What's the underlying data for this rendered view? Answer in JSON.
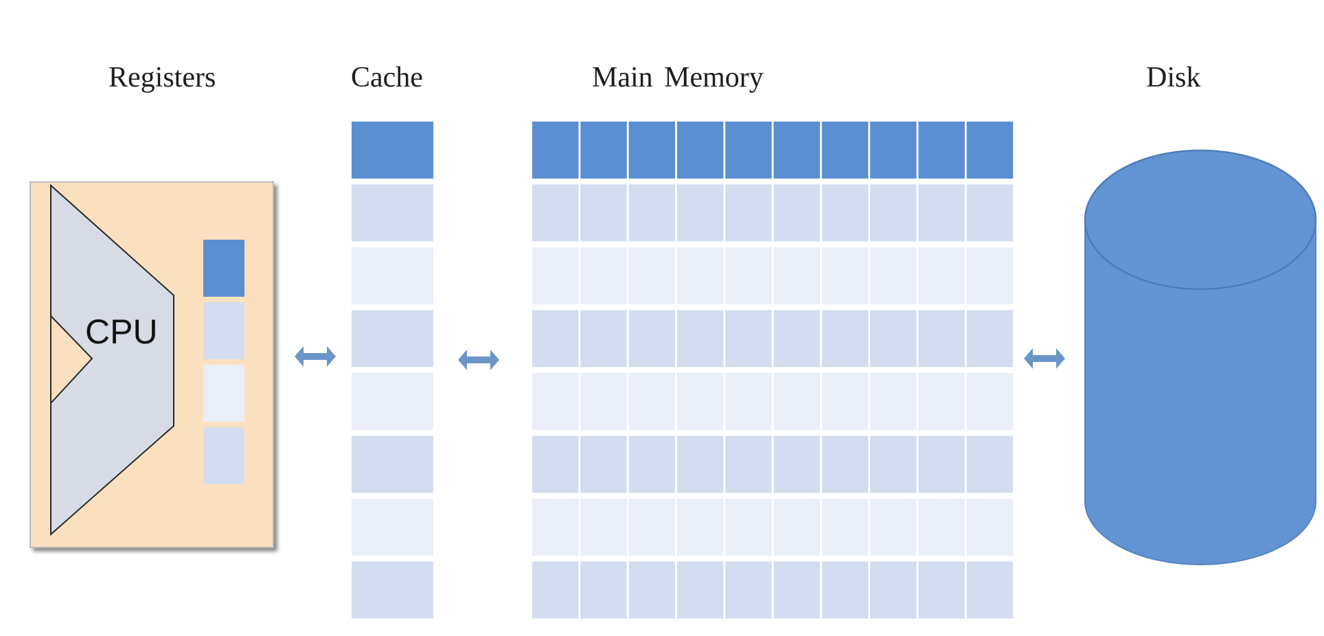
{
  "labels": {
    "registers": "Registers",
    "cache": "Cache",
    "main_memory": "Main  Memory",
    "disk": "Disk",
    "cpu": "CPU"
  },
  "structure": {
    "register_cells": 4,
    "cache_rows": 8,
    "memory_rows": 8,
    "memory_cols": 10,
    "highlighted_row": 0
  },
  "colors": {
    "accent_blue": "#5b8fd1",
    "disk_blue": "#6294d3",
    "disk_outline": "#4f7cb6",
    "register_panel": "#fbe0c0",
    "cpu_shape": "#d6dbe5",
    "row_dark": "#d3ddef",
    "row_light": "#e9eef8",
    "arrow_blue": "#6a95c9"
  },
  "arrows": [
    {
      "from": "registers",
      "to": "cache",
      "direction": "bidirectional"
    },
    {
      "from": "cache",
      "to": "main_memory",
      "direction": "bidirectional"
    },
    {
      "from": "main_memory",
      "to": "disk",
      "direction": "bidirectional"
    }
  ]
}
